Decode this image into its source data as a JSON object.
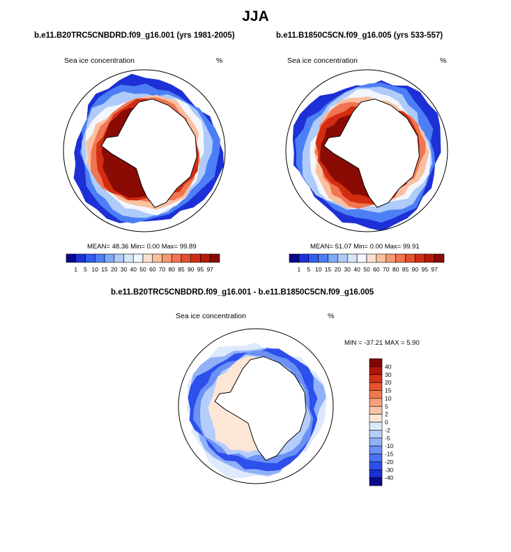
{
  "figure": {
    "title": "JJA"
  },
  "colors": {
    "ice_scale": [
      "#08088f",
      "#1c30d6",
      "#2f5ef2",
      "#4c7ef5",
      "#7fa8f7",
      "#aecbf9",
      "#d6e6fb",
      "#f3f6fc",
      "#fbe0cf",
      "#f9c0a0",
      "#f59a73",
      "#f07550",
      "#e44f2e",
      "#d22d12",
      "#b31a0a",
      "#8a0b04"
    ],
    "diff_scale": [
      "#0a0a8f",
      "#1b2fd4",
      "#2d4fec",
      "#4a70f2",
      "#6b91f5",
      "#90b0f8",
      "#b5cdfa",
      "#dde9fc",
      "#fde6d6",
      "#f9c3a5",
      "#f5a07a",
      "#ef7a52",
      "#e6542f",
      "#d43115",
      "#b0160a",
      "#7f0703"
    ],
    "land": "#ffffff",
    "coast": "#000000"
  },
  "chart_data": [
    {
      "type": "heatmap",
      "projection": "south-polar-stereographic",
      "title": "b.e11.B20TRC5CNBDRD.f09_g16.001 (yrs 1981-2005)",
      "variable": "Sea ice concentration",
      "units": "%",
      "stats": {
        "mean_label": "MEAN=",
        "mean": "48.36",
        "min_label": "Min=",
        "min": "0.00",
        "max_label": "Max=",
        "max": "99.89"
      },
      "colorbar": {
        "orientation": "horizontal",
        "levels": [
          "1",
          "5",
          "10",
          "15",
          "20",
          "30",
          "40",
          "50",
          "60",
          "70",
          "80",
          "85",
          "90",
          "95",
          "97"
        ]
      }
    },
    {
      "type": "heatmap",
      "projection": "south-polar-stereographic",
      "title": "b.e11.B1850C5CN.f09_g16.005 (yrs 533-557)",
      "variable": "Sea ice concentration",
      "units": "%",
      "stats": {
        "mean_label": "MEAN=",
        "mean": "51.07",
        "min_label": "Min=",
        "min": "0.00",
        "max_label": "Max=",
        "max": "99.91"
      },
      "colorbar": {
        "orientation": "horizontal",
        "levels": [
          "1",
          "5",
          "10",
          "15",
          "20",
          "30",
          "40",
          "50",
          "60",
          "70",
          "80",
          "85",
          "90",
          "95",
          "97"
        ]
      }
    },
    {
      "type": "heatmap",
      "projection": "south-polar-stereographic",
      "title": "b.e11.B20TRC5CNBDRD.f09_g16.001 - b.e11.B1850C5CN.f09_g16.005",
      "variable": "Sea ice concentration",
      "units": "%",
      "stats": {
        "min_label": "MIN =",
        "min": "-37.21",
        "max_label": "MAX =",
        "max": "5.90"
      },
      "colorbar": {
        "orientation": "vertical",
        "levels": [
          "40",
          "30",
          "20",
          "15",
          "10",
          "5",
          "2",
          "0",
          "-2",
          "-5",
          "-10",
          "-15",
          "-20",
          "-30",
          "-40"
        ]
      }
    }
  ]
}
